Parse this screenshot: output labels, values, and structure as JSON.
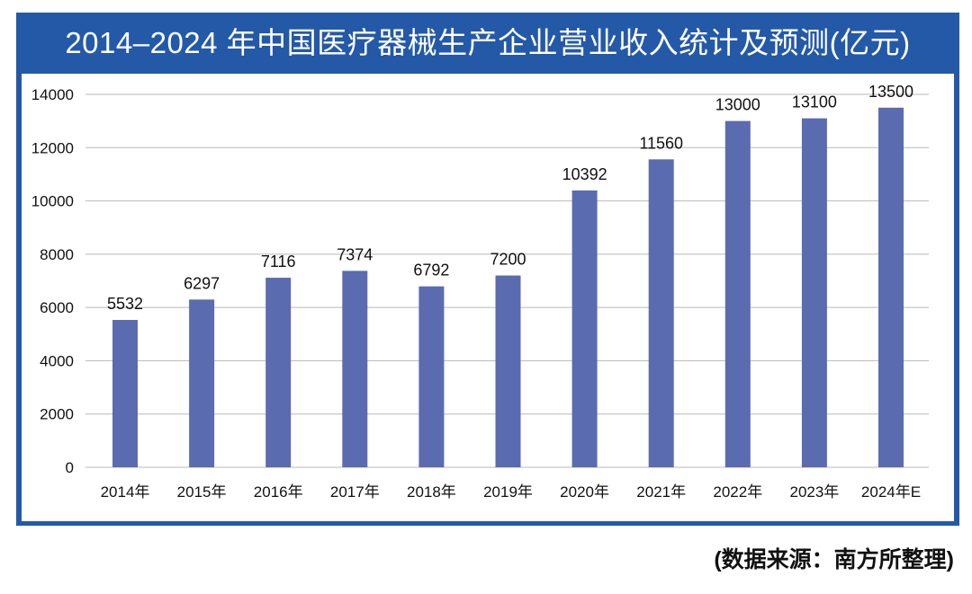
{
  "chart_data": {
    "type": "bar",
    "title": "2014–2024 年中国医疗器械生产企业营业收入统计及预测(亿元)",
    "categories": [
      "2014年",
      "2015年",
      "2016年",
      "2017年",
      "2018年",
      "2019年",
      "2020年",
      "2021年",
      "2022年",
      "2023年",
      "2024年E"
    ],
    "values": [
      5532,
      6297,
      7116,
      7374,
      6792,
      7200,
      10392,
      11560,
      13000,
      13100,
      13500
    ],
    "ylim": [
      0,
      14000
    ],
    "yticks": [
      0,
      2000,
      4000,
      6000,
      8000,
      10000,
      12000,
      14000
    ],
    "grid": false,
    "xlabel": "",
    "ylabel": "",
    "bar_color": "#5b6bb0",
    "frame_color": "#2459a8",
    "source": "(数据来源：南方所整理)"
  }
}
